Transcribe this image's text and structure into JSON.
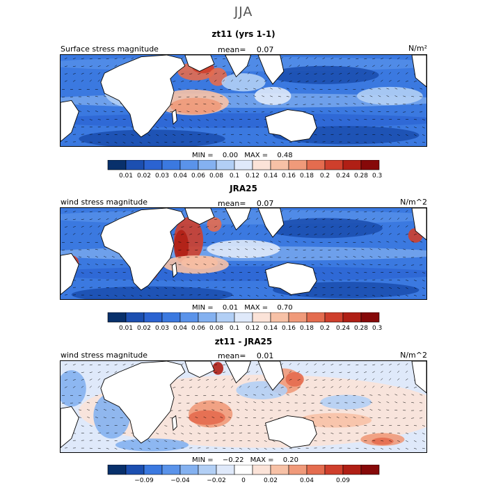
{
  "figure_title": "JJA",
  "colors": {
    "scale_abs": [
      "#08306b",
      "#1c4fb0",
      "#2b63d1",
      "#3b79e0",
      "#5a93ea",
      "#84b1f0",
      "#b2cff5",
      "#dfe9fa",
      "#fbe3d8",
      "#f7c1a6",
      "#f09a7a",
      "#e46c4f",
      "#cf3f2c",
      "#b01f15",
      "#860909"
    ],
    "scale_diff": [
      "#08306b",
      "#1c4fb0",
      "#3b79e0",
      "#5a93ea",
      "#84b1f0",
      "#b2cff5",
      "#dfe9fa",
      "#ffffff",
      "#fbe3d8",
      "#f7c1a6",
      "#f09a7a",
      "#e46c4f",
      "#cf3f2c",
      "#b01f15",
      "#860909"
    ]
  },
  "panels": [
    {
      "title": "zt11 (yrs 1-1)",
      "left_label": "Surface stress magnitude",
      "mean_label": "mean=",
      "mean_value": "0.07",
      "units": "N/m²",
      "min_label": "MIN =",
      "min_value": "0.00",
      "max_label": "MAX =",
      "max_value": "0.48",
      "colorbar_ticks": [
        "0.01",
        "0.02",
        "0.03",
        "0.04",
        "0.06",
        "0.08",
        "0.1",
        "0.12",
        "0.14",
        "0.16",
        "0.18",
        "0.2",
        "0.24",
        "0.28",
        "0.32"
      ]
    },
    {
      "title": "JRA25",
      "left_label": "wind stress magnitude",
      "mean_label": "mean=",
      "mean_value": "0.07",
      "units": "N/m^2",
      "min_label": "MIN =",
      "min_value": "0.01",
      "max_label": "MAX =",
      "max_value": "0.70",
      "colorbar_ticks": [
        "0.01",
        "0.02",
        "0.03",
        "0.04",
        "0.06",
        "0.08",
        "0.1",
        "0.12",
        "0.14",
        "0.16",
        "0.18",
        "0.2",
        "0.24",
        "0.28",
        "0.32"
      ]
    },
    {
      "title": "zt11 - JRA25",
      "left_label": "wind stress magnitude",
      "mean_label": "mean=",
      "mean_value": "0.01",
      "units": "N/m^2",
      "min_label": "MIN =",
      "min_value": "−0.22",
      "max_label": "MAX =",
      "max_value": "0.20",
      "colorbar_ticks": [
        "−0.09",
        "−0.04",
        "−0.02",
        "0",
        "0.02",
        "0.04",
        "0.09"
      ]
    }
  ],
  "chart_data": [
    {
      "type": "heatmap",
      "title": "zt11 (yrs 1-1)",
      "subtitle": "Surface stress magnitude",
      "units": "N/m²",
      "mean": 0.07,
      "min": 0.0,
      "max": 0.48,
      "color_levels": [
        0.01,
        0.02,
        0.03,
        0.04,
        0.06,
        0.08,
        0.1,
        0.12,
        0.14,
        0.16,
        0.18,
        0.2,
        0.24,
        0.28,
        0.32
      ]
    },
    {
      "type": "heatmap",
      "title": "JRA25",
      "subtitle": "wind stress magnitude",
      "units": "N/m^2",
      "mean": 0.07,
      "min": 0.01,
      "max": 0.7,
      "color_levels": [
        0.01,
        0.02,
        0.03,
        0.04,
        0.06,
        0.08,
        0.1,
        0.12,
        0.14,
        0.16,
        0.18,
        0.2,
        0.24,
        0.28,
        0.32
      ]
    },
    {
      "type": "heatmap",
      "title": "zt11 - JRA25",
      "subtitle": "wind stress magnitude",
      "units": "N/m^2",
      "mean": 0.01,
      "min": -0.22,
      "max": 0.2,
      "color_levels": [
        -0.09,
        -0.04,
        -0.02,
        0,
        0.02,
        0.04,
        0.09
      ]
    }
  ]
}
